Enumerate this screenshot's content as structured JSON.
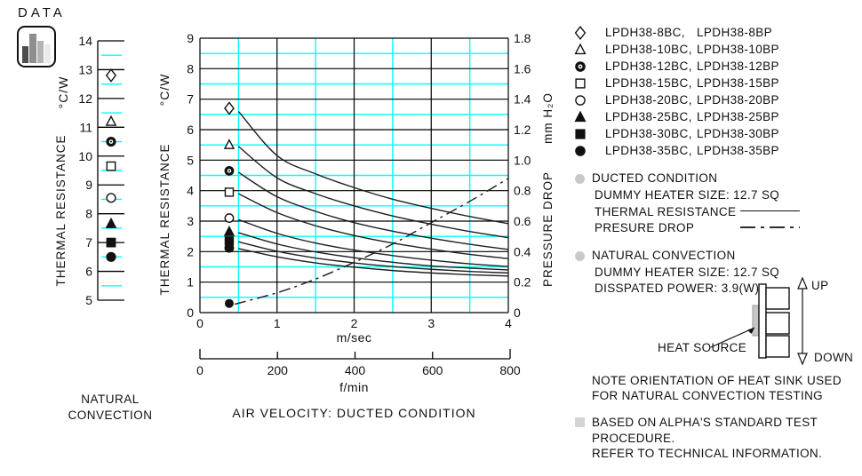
{
  "page": {
    "data_label": "DATA",
    "title": "AIR VELOCITY:  DUCTED CONDITION",
    "caption_line1": "NATURAL",
    "caption_line2": "CONVECTION"
  },
  "colors": {
    "grid_cyan": "#00ffff",
    "curve": "#1e1e1e",
    "text": "#111111",
    "bullet_gray": "#c9c9c9",
    "heat_source_gray": "#c6c6c6"
  },
  "chart_data": [
    {
      "id": "natural-convection-strip",
      "type": "scatter",
      "title": "NATURAL CONVECTION",
      "ylabel": "THERMAL RESISTANCE",
      "ylabel_units": "°C/W",
      "ylim": [
        5,
        14
      ],
      "yticks": [
        14,
        13,
        12,
        11,
        10,
        9,
        8,
        7,
        6,
        5
      ],
      "grid": "horizontal, black at integers, cyan at halves",
      "points": [
        {
          "marker": "diamond-open",
          "model": "LPDH38-8",
          "value": 12.8
        },
        {
          "marker": "triangle-open",
          "model": "LPDH38-10",
          "value": 11.2
        },
        {
          "marker": "bullseye",
          "model": "LPDH38-12",
          "value": 10.5
        },
        {
          "marker": "square-open",
          "model": "LPDH38-15",
          "value": 9.65
        },
        {
          "marker": "circle-open",
          "model": "LPDH38-20",
          "value": 8.55
        },
        {
          "marker": "triangle-filled",
          "model": "LPDH38-25",
          "value": 7.65
        },
        {
          "marker": "square-filled",
          "model": "LPDH38-30",
          "value": 7.0
        },
        {
          "marker": "circle-filled",
          "model": "LPDH38-35",
          "value": 6.5
        }
      ]
    },
    {
      "id": "ducted-condition-chart",
      "type": "line",
      "title": "AIR VELOCITY:  DUCTED CONDITION",
      "xlabel_primary": "m/sec",
      "xlabel_secondary": "f/min",
      "ylabel_left": "THERMAL RESISTANCE",
      "ylabel_left_units": "°C/W",
      "ylabel_right": "PRESSURE DROP",
      "ylabel_right_units": "mm H₂O",
      "xlim": [
        0,
        4
      ],
      "ylim_left": [
        0,
        9
      ],
      "ylim_right": [
        0,
        1.8
      ],
      "xticks": [
        "0",
        "1",
        "2",
        "3",
        "4"
      ],
      "yticks_left": [
        "9",
        "8",
        "7",
        "6",
        "5",
        "4",
        "3",
        "2",
        "1",
        "0"
      ],
      "yticks_right": [
        "1.8",
        "1.6",
        "1.4",
        "1.2",
        "1.0",
        "0.8",
        "0.6",
        "0.4",
        "0.2",
        "0"
      ],
      "fmin_ticks": [
        "0",
        "200",
        "400",
        "600",
        "800"
      ],
      "grid": "black at integers, cyan at halves, both axes",
      "x_samples": [
        0.5,
        1,
        1.5,
        2,
        2.5,
        3,
        3.5,
        4
      ],
      "series": [
        {
          "marker": "diamond-open",
          "name": "LPDH38-8BC/8BP",
          "marker_x": 0.38,
          "marker_y": 6.7,
          "values": [
            6.6,
            5.15,
            4.55,
            4.1,
            3.72,
            3.42,
            3.15,
            2.92
          ]
        },
        {
          "marker": "triangle-open",
          "name": "LPDH38-10BC/10BP",
          "marker_x": 0.38,
          "marker_y": 5.5,
          "values": [
            5.45,
            4.42,
            3.9,
            3.5,
            3.17,
            2.9,
            2.66,
            2.46
          ]
        },
        {
          "marker": "bullseye",
          "name": "LPDH38-12BC/12BP",
          "marker_x": 0.38,
          "marker_y": 4.65,
          "values": [
            4.6,
            3.8,
            3.32,
            2.95,
            2.67,
            2.44,
            2.24,
            2.07
          ]
        },
        {
          "marker": "square-open",
          "name": "LPDH38-15BC/15BP",
          "marker_x": 0.38,
          "marker_y": 3.95,
          "values": [
            3.9,
            3.28,
            2.85,
            2.53,
            2.28,
            2.08,
            1.91,
            1.77
          ]
        },
        {
          "marker": "circle-open",
          "name": "LPDH38-20BC/20BP",
          "marker_x": 0.38,
          "marker_y": 3.1,
          "values": [
            3.05,
            2.6,
            2.28,
            2.05,
            1.87,
            1.72,
            1.6,
            1.51
          ]
        },
        {
          "marker": "triangle-filled",
          "name": "LPDH38-25BC/25BP",
          "marker_x": 0.38,
          "marker_y": 2.65,
          "values": [
            2.62,
            2.25,
            1.99,
            1.8,
            1.65,
            1.53,
            1.46,
            1.4
          ]
        },
        {
          "marker": "square-filled",
          "name": "LPDH38-30BC/30BP",
          "marker_x": 0.38,
          "marker_y": 2.35,
          "values": [
            2.32,
            2.01,
            1.79,
            1.63,
            1.51,
            1.42,
            1.35,
            1.3
          ]
        },
        {
          "marker": "circle-filled",
          "name": "LPDH38-35BC/35BP",
          "marker_x": 0.38,
          "marker_y": 2.12,
          "values": [
            2.1,
            1.83,
            1.63,
            1.49,
            1.38,
            1.3,
            1.24,
            1.2
          ]
        }
      ],
      "pressure_series": {
        "name": "PRESSURE DROP",
        "style": "dash-dot",
        "marker": "circle-filled",
        "marker_x": 0.38,
        "marker_y_mm": 0.06,
        "x": [
          0.45,
          1,
          1.5,
          2,
          2.5,
          3,
          3.5,
          4
        ],
        "values_mm": [
          0.055,
          0.13,
          0.22,
          0.33,
          0.45,
          0.59,
          0.73,
          0.88
        ]
      }
    }
  ],
  "legend": {
    "items": [
      {
        "marker": "diamond-open",
        "bc": "LPDH38-8BC,",
        "bp": "LPDH38-8BP"
      },
      {
        "marker": "triangle-open",
        "bc": "LPDH38-10BC,",
        "bp": "LPDH38-10BP"
      },
      {
        "marker": "bullseye",
        "bc": "LPDH38-12BC,",
        "bp": "LPDH38-12BP"
      },
      {
        "marker": "square-open",
        "bc": "LPDH38-15BC,",
        "bp": "LPDH38-15BP"
      },
      {
        "marker": "circle-open",
        "bc": "LPDH38-20BC,",
        "bp": "LPDH38-20BP"
      },
      {
        "marker": "triangle-filled",
        "bc": "LPDH38-25BC,",
        "bp": "LPDH38-25BP"
      },
      {
        "marker": "square-filled",
        "bc": "LPDH38-30BC,",
        "bp": "LPDH38-30BP"
      },
      {
        "marker": "circle-filled",
        "bc": "LPDH38-35BC,",
        "bp": "LPDH38-35BP"
      }
    ]
  },
  "notes": {
    "ducted": {
      "heading": "DUCTED CONDITION",
      "line1": "DUMMY HEATER SIZE: 12.7 SQ",
      "thermal_label": "THERMAL RESISTANCE",
      "pressure_label": "PRESURE DROP"
    },
    "natural": {
      "heading": "NATURAL CONVECTION",
      "line1": "DUMMY HEATER SIZE: 12.7 SQ",
      "line2": "DISSPATED POWER: 3.9(W)",
      "heat_source_label": "HEAT SOURCE",
      "up": "UP",
      "down": "DOWN",
      "note1": "NOTE ORIENTATION OF HEAT SINK USED",
      "note2": "FOR NATURAL CONVECTION TESTING"
    },
    "footer": {
      "line1": "BASED ON ALPHA'S STANDARD TEST",
      "line2": "PROCEDURE.",
      "line3": "REFER TO TECHNICAL INFORMATION."
    }
  }
}
